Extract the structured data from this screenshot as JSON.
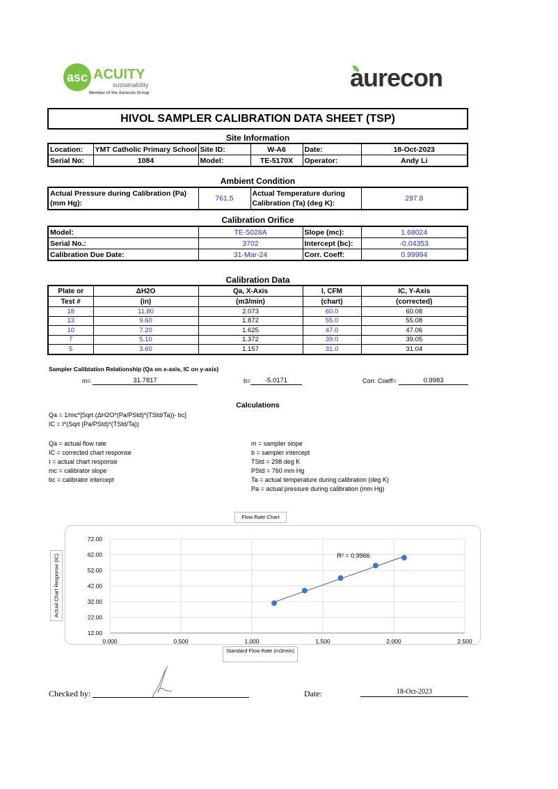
{
  "logos": {
    "acuity_name": "ACUITY",
    "acuity_sub": "sustainability",
    "acuity_member": "Member of the Aurecon Group",
    "aurecon": "aurecon",
    "acuity_color": "#7cc242",
    "aurecon_color": "#333333"
  },
  "title": "HIVOL SAMPLER CALIBRATION  DATA SHEET (TSP)",
  "site": {
    "heading": "Site Information",
    "location_label": "Location:",
    "location": "YMT Catholic Primary School",
    "site_id_label": "Site ID:",
    "site_id": "W-A6",
    "date_label": "Date:",
    "date": "18-Oct-2023",
    "serial_label": "Serial No:",
    "serial": "1084",
    "model_label": "Model:",
    "model": "TE-5170X",
    "operator_label": "Operator:",
    "operator": "Andy Li"
  },
  "ambient": {
    "heading": "Ambient Condition",
    "pressure_label": "Actual Pressure during Calibration (Pa) (mm Hg):",
    "pressure": "761.5",
    "temp_label": "Actual Temperature during Calibration (Ta) (deg K):",
    "temp": "297.8"
  },
  "orifice": {
    "heading": "Calibration Orifice",
    "model_label": "Model:",
    "model": "TE-5028A",
    "slope_label": "Slope (mc):",
    "slope": "1.68024",
    "serial_label": "Serial No.:",
    "serial": "3702",
    "intercept_label": "Intercept (bc):",
    "intercept": "-0.04353",
    "due_label": "Calibration Due Date:",
    "due": "31-Mar-24",
    "corr_label": "Corr. Coeff:",
    "corr": "0.99994"
  },
  "calibration": {
    "heading": "Calibration Data",
    "headers": [
      [
        "Plate or",
        "Test #"
      ],
      [
        "ΔH2O",
        "(in)"
      ],
      [
        "Qa, X-Axis",
        "(m3/min)"
      ],
      [
        "I, CFM",
        "(chart)"
      ],
      [
        "IC, Y-Axis",
        "(corrected)"
      ]
    ],
    "rows": [
      [
        "18",
        "11.80",
        "2.073",
        "60.0",
        "60.08"
      ],
      [
        "13",
        "9.60",
        "1.872",
        "55.0",
        "55.08"
      ],
      [
        "10",
        "7.20",
        "1.625",
        "47.0",
        "47.06"
      ],
      [
        "7",
        "5.10",
        "1.372",
        "39.0",
        "39.05"
      ],
      [
        "5",
        "3.60",
        "1.157",
        "31.0",
        "31.04"
      ]
    ]
  },
  "relationship": {
    "heading": "Sampler Calibtation Relationship (Qa on x-axis, IC on y-axis)",
    "m_label": "m=",
    "m": "31.7817",
    "b_label": "b=",
    "b": "-5.0171",
    "corr_label": "Corr. Coeff=",
    "corr": "0.9983"
  },
  "calculations": {
    "heading": "Calculations",
    "formula1": "Qa = 1/mc*[Sqrt (ΔH2O*(Pa/PStd)*(TStd/Ta))- bc]",
    "formula2": "IC = I*(Sqrt (Pa/PStd)*(TStd/Ta))",
    "left": [
      "Qa = actual flow rate",
      "IC = corrected chart response",
      "I = actual chart response",
      "mc  = calibrator slope",
      "bc  = calibrator intercept"
    ],
    "right": [
      "m = sampler slope",
      "b  = sampler intercept",
      "TStd = 298 deg K",
      "PStd = 760 mm Hg",
      "Ta = actual temperature during calibration (deg K)",
      "Pa = actual pressure during calibration (mm Hg)"
    ]
  },
  "chart_data": {
    "type": "scatter",
    "title": "Flow Rate Chart",
    "xlabel": "Standard Flow Rate (m3/min)",
    "ylabel": "Actual Chart Response (IC)",
    "x": [
      2.073,
      1.872,
      1.625,
      1.372,
      1.157
    ],
    "y": [
      60.08,
      55.08,
      47.06,
      39.05,
      31.04
    ],
    "xlim": [
      0,
      2.5
    ],
    "ylim": [
      12,
      72
    ],
    "xticks": [
      "0.000",
      "0.500",
      "1.000",
      "1.500",
      "2.000",
      "2.500"
    ],
    "yticks": [
      "72.00",
      "62.00",
      "52.00",
      "42.00",
      "32.00",
      "22.00",
      "12.00"
    ],
    "trendline": "linear",
    "r2_label": "R² = 0.9966",
    "grid": true,
    "marker_color": "#3a78d8"
  },
  "signoff": {
    "checked_label": "Checked by:",
    "date_label": "Date:",
    "date": "18-Oct-2023"
  }
}
